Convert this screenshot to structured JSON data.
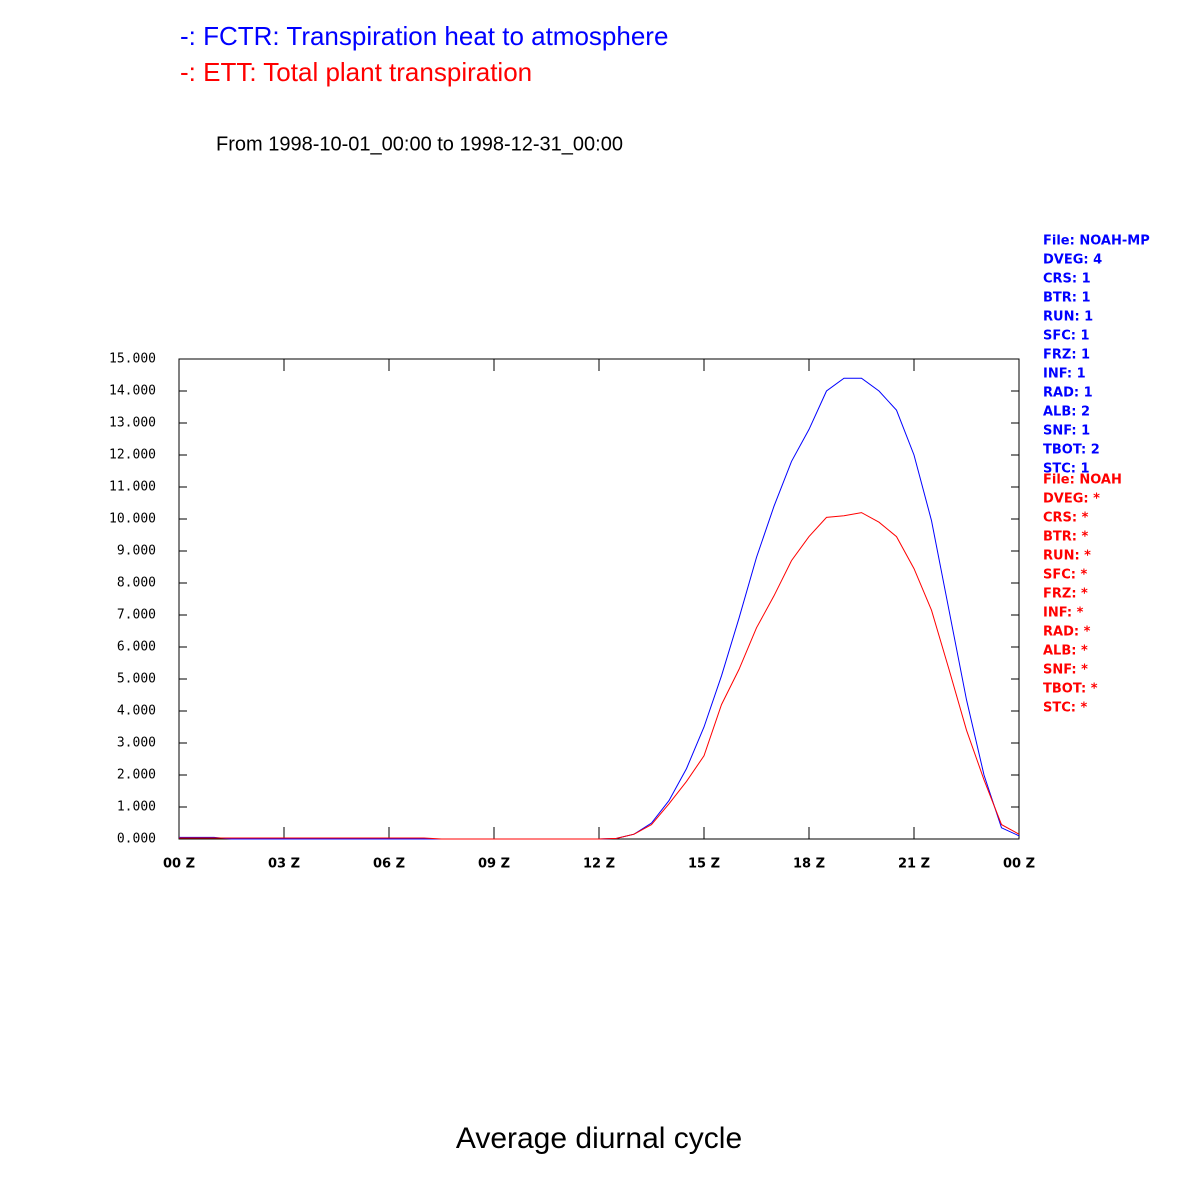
{
  "chart_data": {
    "type": "line",
    "subtitle": "From 1998-10-01_00:00 to 1998-12-31_00:00",
    "x_label": "Average diurnal cycle",
    "x": [
      0,
      0.5,
      1,
      1.5,
      2,
      2.5,
      3,
      3.5,
      4,
      4.5,
      5,
      5.5,
      6,
      6.5,
      7,
      7.5,
      8,
      8.5,
      9,
      9.5,
      10,
      10.5,
      11,
      11.5,
      12,
      12.5,
      13,
      13.5,
      14,
      14.5,
      15,
      15.5,
      16,
      16.5,
      17,
      17.5,
      18,
      18.5,
      19,
      19.5,
      20,
      20.5,
      21,
      21.5,
      22,
      22.5,
      23,
      23.5,
      24
    ],
    "series": [
      {
        "name": "-: FCTR: Transpiration heat to atmosphere",
        "color": "#0000ff",
        "values": [
          0.05,
          0.05,
          0.05,
          0,
          0,
          0,
          0,
          0,
          0,
          0,
          0,
          0,
          0,
          0,
          0,
          0,
          0,
          0,
          0,
          0,
          0,
          0,
          0,
          0,
          0,
          0.02,
          0.15,
          0.5,
          1.2,
          2.2,
          3.5,
          5.1,
          6.9,
          8.8,
          10.4,
          11.8,
          12.8,
          14.0,
          14.4,
          14.4,
          14.0,
          13.4,
          12.0,
          9.95,
          7.15,
          4.35,
          2.0,
          0.35,
          0.1
        ]
      },
      {
        "name": "-: ETT: Total plant transpiration",
        "color": "#ff0000",
        "values": [
          0.03,
          0.03,
          0.03,
          0.03,
          0.03,
          0.03,
          0.03,
          0.03,
          0.03,
          0.03,
          0.03,
          0.03,
          0.03,
          0.03,
          0.03,
          0,
          0,
          0,
          0,
          0,
          0,
          0,
          0,
          0,
          0,
          0.02,
          0.15,
          0.45,
          1.1,
          1.8,
          2.6,
          4.2,
          5.3,
          6.6,
          7.6,
          8.7,
          9.45,
          10.05,
          10.1,
          10.2,
          9.9,
          9.45,
          8.45,
          7.15,
          5.3,
          3.4,
          1.85,
          0.45,
          0.15
        ]
      }
    ],
    "xlim": [
      0,
      24
    ],
    "xticks": [
      {
        "value": 0,
        "label": "00 Z"
      },
      {
        "value": 3,
        "label": "03 Z"
      },
      {
        "value": 6,
        "label": "06 Z"
      },
      {
        "value": 9,
        "label": "09 Z"
      },
      {
        "value": 12,
        "label": "12 Z"
      },
      {
        "value": 15,
        "label": "15 Z"
      },
      {
        "value": 18,
        "label": "18 Z"
      },
      {
        "value": 21,
        "label": "21 Z"
      },
      {
        "value": 24,
        "label": "00 Z"
      }
    ],
    "ylim": [
      0,
      15
    ],
    "yticks": [
      {
        "value": 0,
        "label": "0.000"
      },
      {
        "value": 1,
        "label": "1.000"
      },
      {
        "value": 2,
        "label": "2.000"
      },
      {
        "value": 3,
        "label": "3.000"
      },
      {
        "value": 4,
        "label": "4.000"
      },
      {
        "value": 5,
        "label": "5.000"
      },
      {
        "value": 6,
        "label": "6.000"
      },
      {
        "value": 7,
        "label": "7.000"
      },
      {
        "value": 8,
        "label": "8.000"
      },
      {
        "value": 9,
        "label": "9.000"
      },
      {
        "value": 10,
        "label": "10.000"
      },
      {
        "value": 11,
        "label": "11.000"
      },
      {
        "value": 12,
        "label": "12.000"
      },
      {
        "value": 13,
        "label": "13.000"
      },
      {
        "value": 14,
        "label": "14.000"
      },
      {
        "value": 15,
        "label": "15.000"
      }
    ],
    "info_blocks": [
      {
        "color": "#0000ff",
        "lines": [
          "File: NOAH-MP",
          "DVEG: 4",
          "CRS: 1",
          "BTR: 1",
          "RUN: 1",
          "SFC: 1",
          "FRZ: 1",
          "INF: 1",
          "RAD: 1",
          "ALB: 2",
          "SNF: 1",
          "TBOT: 2",
          "STC: 1"
        ]
      },
      {
        "color": "#ff0000",
        "lines": [
          "File: NOAH",
          "DVEG: *",
          "CRS: *",
          "BTR: *",
          "RUN: *",
          "SFC: *",
          "FRZ: *",
          "INF: *",
          "RAD: *",
          "ALB: *",
          "SNF: *",
          "TBOT: *",
          "STC: *"
        ]
      }
    ]
  }
}
